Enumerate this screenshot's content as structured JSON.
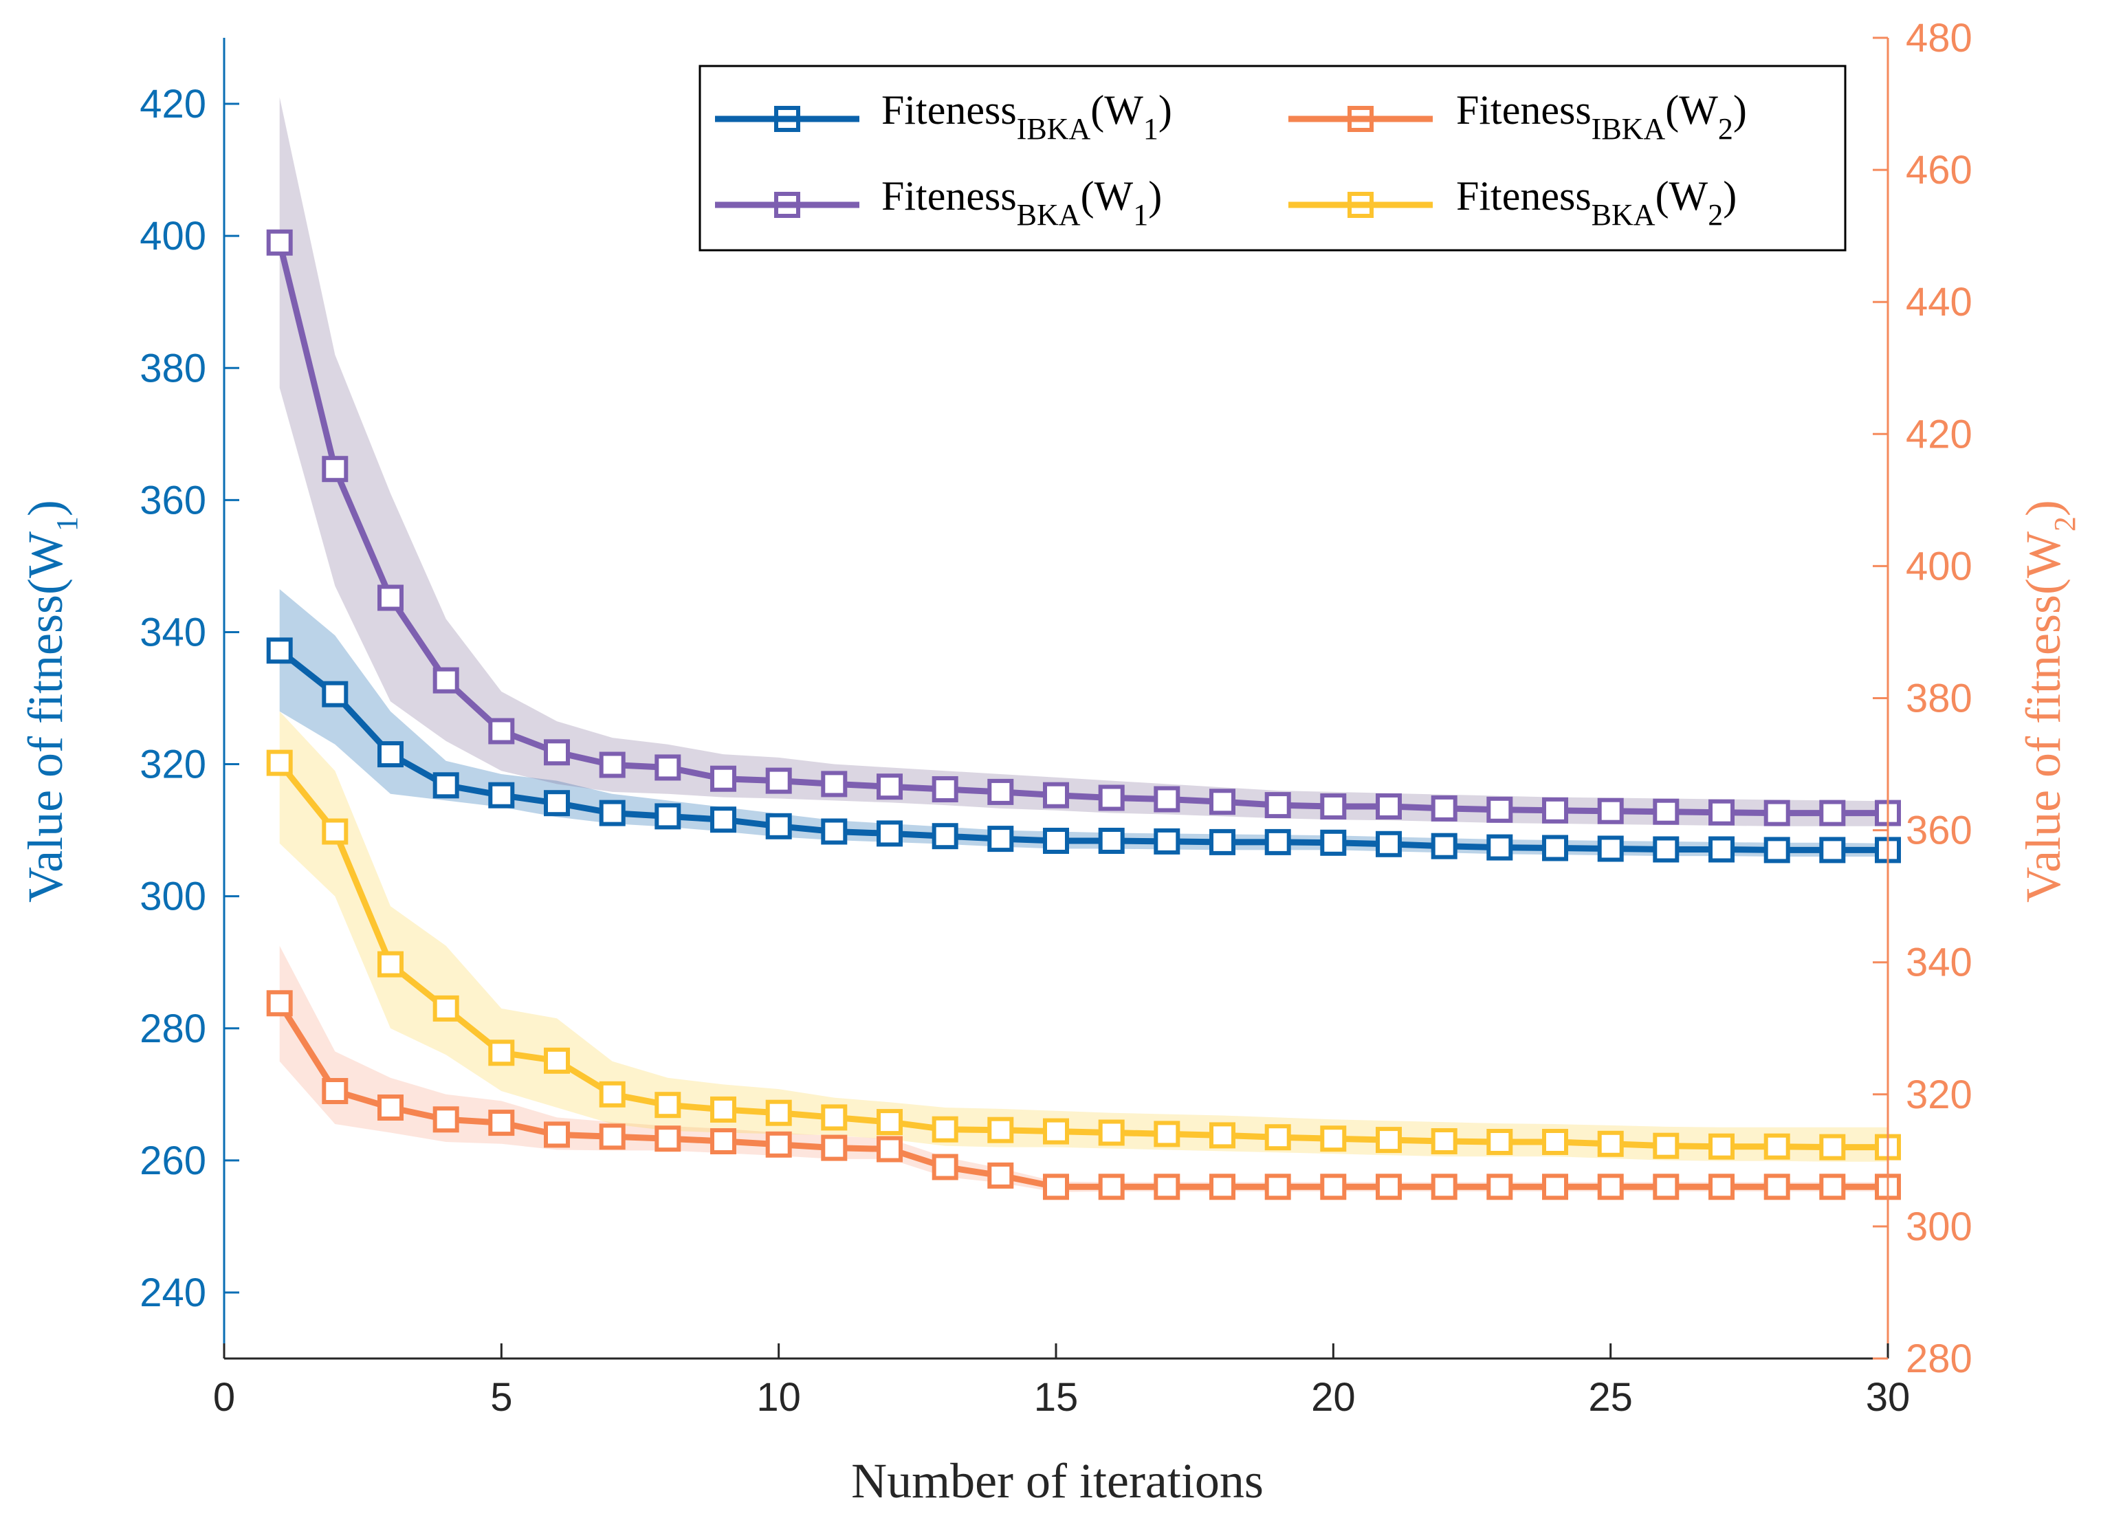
{
  "chart_data": {
    "type": "line",
    "xlabel": "Number of iterations",
    "ylabel_left": "Value of fitness(W",
    "ylabel_left_sub": "1",
    "ylabel_left_close": ")",
    "ylabel_right": "Value of fitness(W",
    "ylabel_right_sub": "2",
    "ylabel_right_close": ")",
    "xlim": [
      0,
      30
    ],
    "ylim_left": [
      230,
      430
    ],
    "ylim_right": [
      280,
      480
    ],
    "xticks": [
      0,
      5,
      10,
      15,
      20,
      25,
      30
    ],
    "yticks_left": [
      240,
      260,
      280,
      300,
      320,
      340,
      360,
      380,
      400,
      420
    ],
    "yticks_right": [
      280,
      300,
      320,
      340,
      360,
      380,
      400,
      420,
      440,
      460,
      480
    ],
    "grid": false,
    "legend_position": "top-right",
    "left_axis_color": "#0a6eb4",
    "right_axis_color": "#f58a5c",
    "x": [
      1,
      2,
      3,
      4,
      5,
      6,
      7,
      8,
      9,
      10,
      11,
      12,
      13,
      14,
      15,
      16,
      17,
      18,
      19,
      20,
      21,
      22,
      23,
      24,
      25,
      26,
      27,
      28,
      29,
      30
    ],
    "series": [
      {
        "id": "ibka_w1",
        "legend_main": "Fiteness",
        "legend_sub": "IBKA",
        "legend_arg": "(W",
        "legend_arg_sub": "1",
        "legend_close": ")",
        "axis": "left",
        "color": "#0a62ab",
        "band_color": "#0a62ab",
        "values": [
          337.2,
          330.6,
          321.5,
          316.8,
          315.3,
          314.1,
          312.6,
          312.1,
          311.6,
          310.6,
          309.8,
          309.5,
          309.1,
          308.7,
          308.4,
          308.4,
          308.3,
          308.2,
          308.2,
          308.1,
          307.9,
          307.6,
          307.4,
          307.3,
          307.2,
          307.1,
          307.1,
          307.0,
          307.0,
          307.0
        ],
        "upper": [
          346.5,
          339.5,
          328.0,
          320.5,
          318.5,
          317.5,
          315.5,
          314.5,
          313.5,
          312.5,
          311.5,
          311.0,
          310.5,
          310.0,
          309.8,
          309.6,
          309.5,
          309.4,
          309.3,
          309.2,
          309.0,
          308.8,
          308.6,
          308.5,
          308.4,
          308.3,
          308.2,
          308.1,
          308.1,
          308.0
        ],
        "lower": [
          328.0,
          323.0,
          315.5,
          314.5,
          313.5,
          312.0,
          311.0,
          310.5,
          309.8,
          309.0,
          308.5,
          308.2,
          307.9,
          307.5,
          307.2,
          307.2,
          307.1,
          307.0,
          307.0,
          307.0,
          306.8,
          306.6,
          306.4,
          306.3,
          306.2,
          306.1,
          306.1,
          306.0,
          306.0,
          306.0
        ]
      },
      {
        "id": "bka_w1",
        "legend_main": "Fiteness",
        "legend_sub": "BKA",
        "legend_arg": "(W",
        "legend_arg_sub": "1",
        "legend_close": ")",
        "axis": "left",
        "color": "#7d5fb0",
        "band_color": "#7d6a98",
        "values": [
          399.0,
          364.7,
          345.2,
          332.7,
          325.0,
          321.8,
          319.9,
          319.5,
          317.8,
          317.5,
          317.0,
          316.6,
          316.2,
          315.8,
          315.3,
          314.9,
          314.7,
          314.3,
          313.8,
          313.6,
          313.6,
          313.3,
          313.1,
          313.0,
          312.9,
          312.8,
          312.7,
          312.6,
          312.6,
          312.6
        ],
        "upper": [
          421.0,
          382.0,
          361.0,
          342.0,
          331.0,
          326.5,
          324.0,
          323.0,
          321.5,
          321.0,
          320.0,
          319.5,
          319.0,
          318.5,
          318.0,
          317.5,
          317.0,
          316.5,
          316.0,
          315.8,
          315.6,
          315.4,
          315.2,
          315.0,
          314.9,
          314.8,
          314.7,
          314.6,
          314.5,
          314.4
        ],
        "lower": [
          377.0,
          347.0,
          329.5,
          323.5,
          319.0,
          317.0,
          315.8,
          315.5,
          315.0,
          314.8,
          314.5,
          314.2,
          313.8,
          313.3,
          313.0,
          312.6,
          312.4,
          312.1,
          311.8,
          311.6,
          311.5,
          311.3,
          311.1,
          311.0,
          310.9,
          310.8,
          310.7,
          310.6,
          310.6,
          310.6
        ]
      },
      {
        "id": "ibka_w2",
        "legend_main": "Fiteness",
        "legend_sub": "IBKA",
        "legend_arg": "(W",
        "legend_arg_sub": "2",
        "legend_close": ")",
        "axis": "right",
        "color": "#f5844f",
        "band_color": "#f7a084",
        "values": [
          333.8,
          320.5,
          318.0,
          316.2,
          315.7,
          313.9,
          313.6,
          313.3,
          312.9,
          312.4,
          311.9,
          311.7,
          309.0,
          307.7,
          306.0,
          306.0,
          306.0,
          306.0,
          306.0,
          306.0,
          306.0,
          306.0,
          306.0,
          306.0,
          306.0,
          306.0,
          306.0,
          306.0,
          306.0,
          306.0
        ],
        "upper": [
          342.5,
          326.5,
          322.5,
          320.0,
          319.0,
          316.5,
          315.8,
          315.2,
          314.8,
          314.2,
          313.7,
          313.3,
          310.5,
          308.8,
          306.8,
          306.7,
          306.7,
          306.7,
          306.7,
          306.7,
          306.7,
          306.7,
          306.7,
          306.7,
          306.7,
          306.7,
          306.7,
          306.7,
          306.7,
          306.7
        ],
        "lower": [
          325.0,
          315.5,
          314.2,
          312.8,
          312.5,
          311.6,
          311.5,
          311.5,
          311.1,
          310.7,
          310.2,
          310.2,
          307.5,
          306.6,
          305.2,
          305.3,
          305.3,
          305.3,
          305.3,
          305.3,
          305.3,
          305.3,
          305.3,
          305.3,
          305.3,
          305.3,
          305.3,
          305.3,
          305.3,
          305.3
        ]
      },
      {
        "id": "bka_w2",
        "legend_main": "Fiteness",
        "legend_sub": "BKA",
        "legend_arg": "(W",
        "legend_arg_sub": "2",
        "legend_close": ")",
        "axis": "right",
        "color": "#fdc42f",
        "band_color": "#fdd34d",
        "values": [
          370.2,
          359.8,
          339.7,
          333.0,
          326.3,
          325.1,
          320.0,
          318.4,
          317.7,
          317.2,
          316.5,
          315.8,
          314.7,
          314.6,
          314.4,
          314.2,
          314.0,
          313.8,
          313.5,
          313.3,
          313.1,
          312.9,
          312.8,
          312.8,
          312.5,
          312.2,
          312.1,
          312.1,
          312.0,
          312.0
        ],
        "upper": [
          378.0,
          369.0,
          348.5,
          342.5,
          333.0,
          331.5,
          325.0,
          322.5,
          321.5,
          320.8,
          319.5,
          318.8,
          318.0,
          317.8,
          317.5,
          317.2,
          317.0,
          316.8,
          316.5,
          316.2,
          316.0,
          315.8,
          315.6,
          315.5,
          315.3,
          315.1,
          315.0,
          315.0,
          315.0,
          315.0
        ],
        "lower": [
          358.0,
          350.0,
          330.0,
          326.0,
          320.5,
          318.0,
          315.5,
          314.5,
          314.2,
          314.0,
          313.8,
          313.2,
          312.2,
          312.0,
          312.0,
          311.8,
          311.6,
          311.4,
          311.2,
          311.0,
          310.8,
          310.6,
          310.6,
          310.6,
          310.3,
          310.0,
          309.9,
          309.9,
          309.8,
          309.8
        ]
      }
    ]
  }
}
